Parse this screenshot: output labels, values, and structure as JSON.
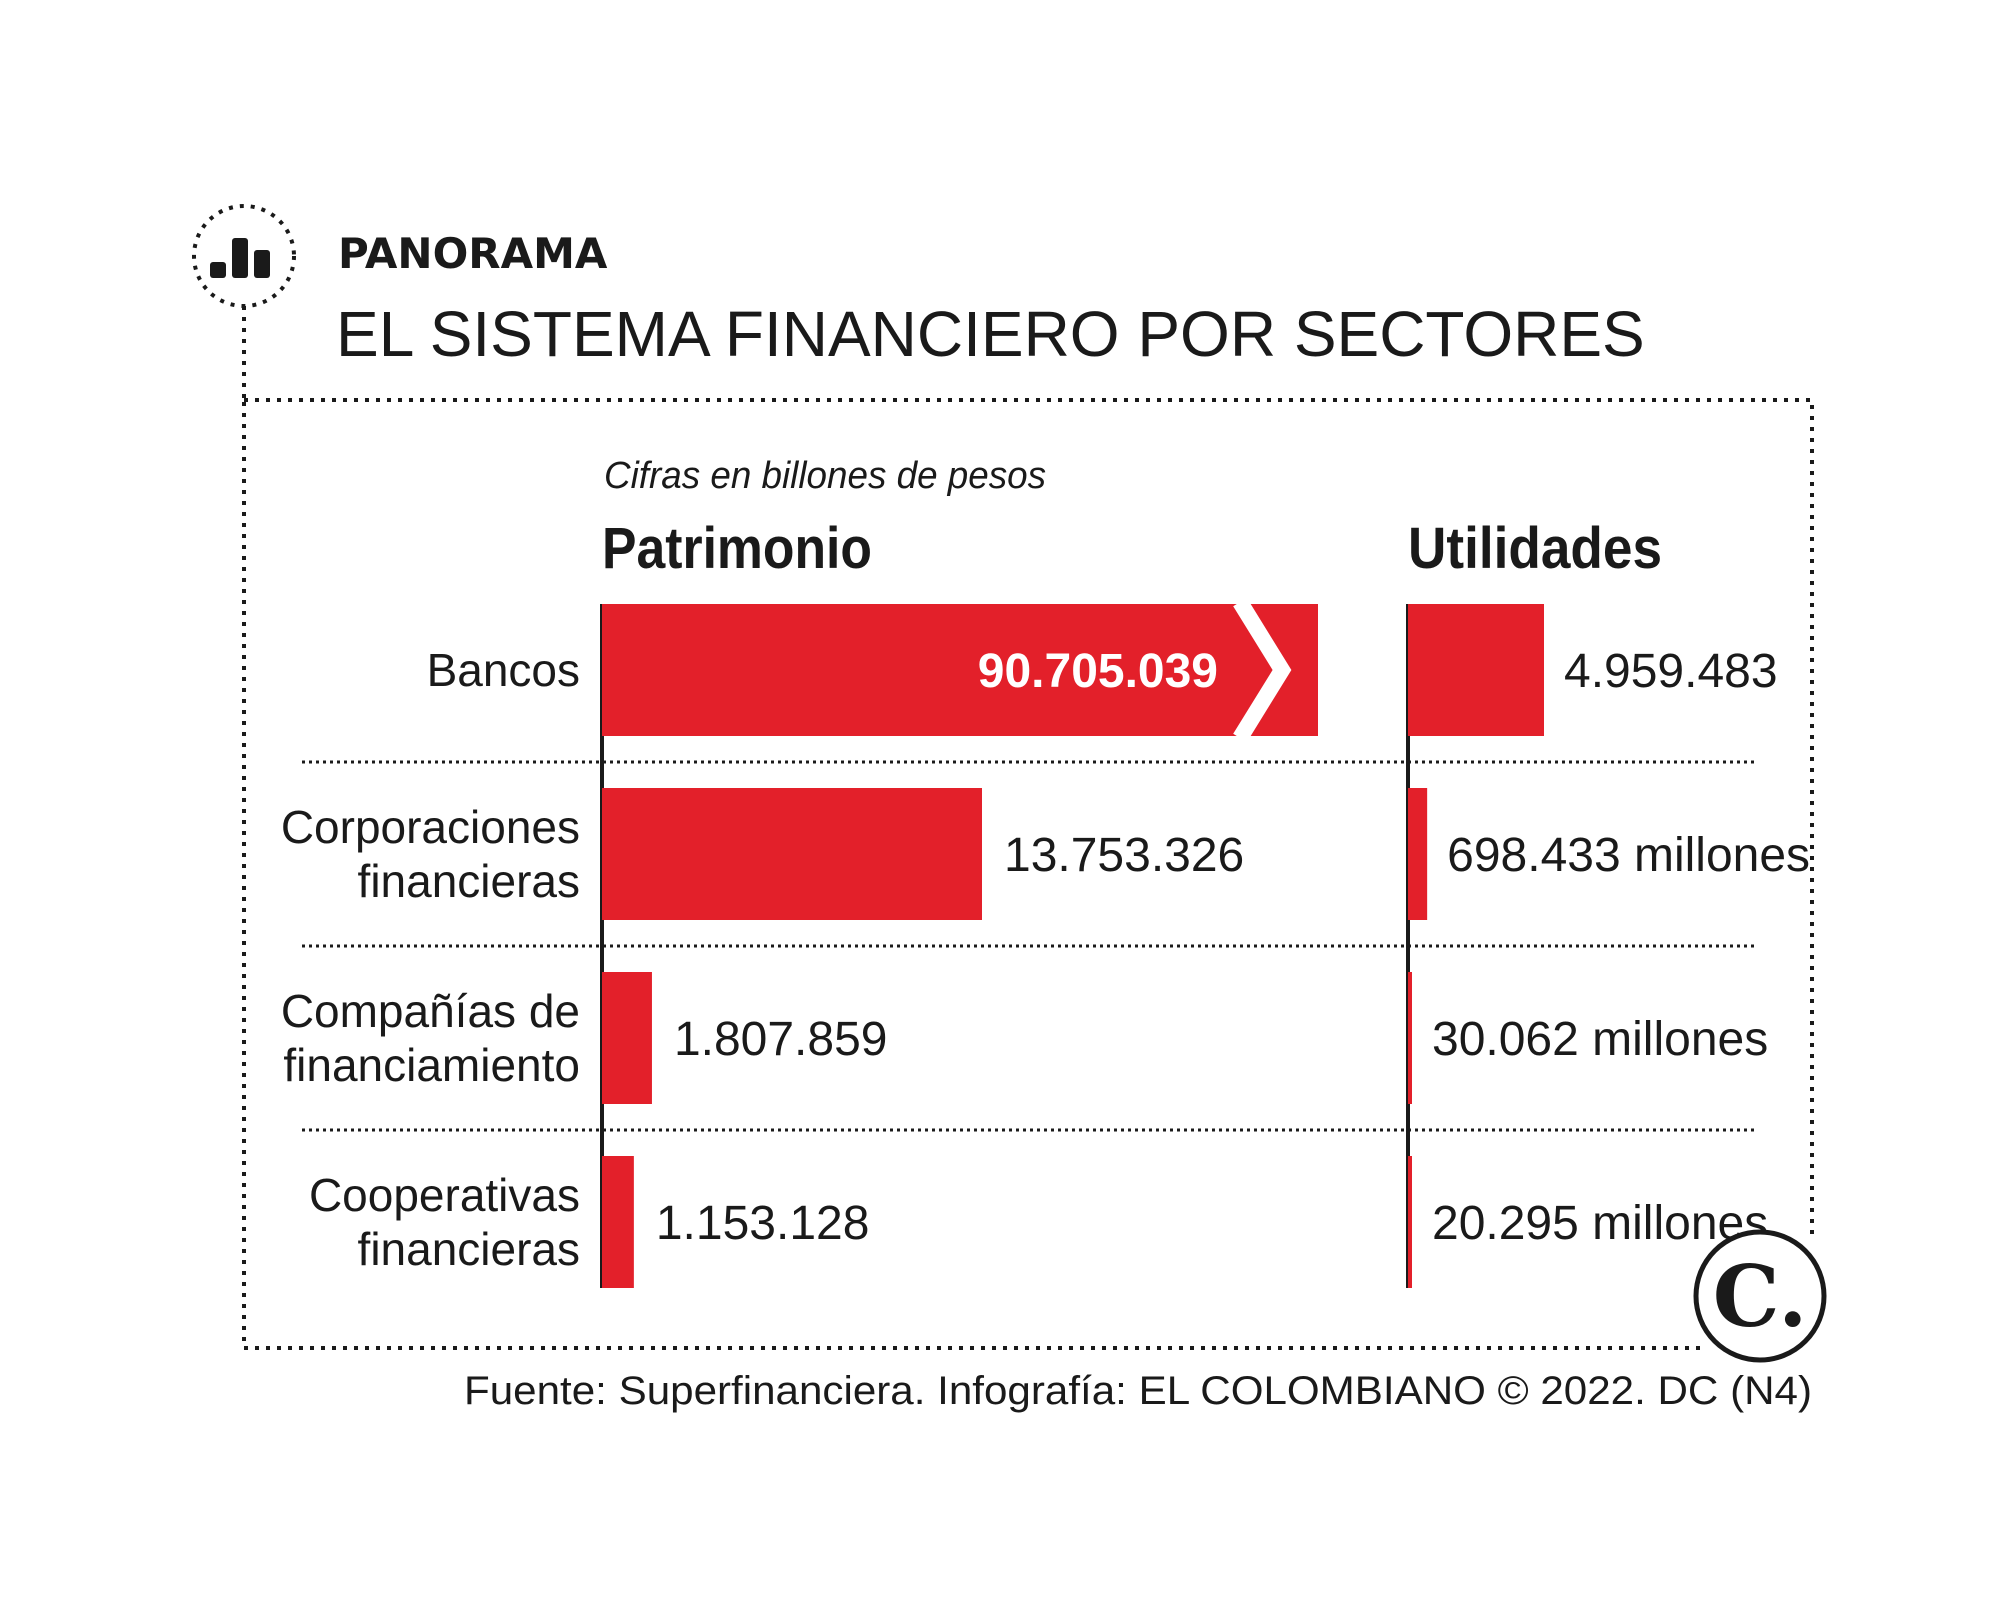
{
  "header": {
    "kicker": "PANORAMA",
    "title": "EL SISTEMA FINANCIERO POR SECTORES",
    "icon": "bar-chart-icon"
  },
  "chart_data": {
    "type": "bar",
    "subtitle": "Cifras en billones de pesos",
    "categories": [
      "Bancos",
      "Corporaciones financieras",
      "Compañías de financiamiento",
      "Cooperativas financieras"
    ],
    "category_lines": [
      [
        "Bancos"
      ],
      [
        "Corporaciones",
        "financieras"
      ],
      [
        "Compañías de",
        "financiamiento"
      ],
      [
        "Cooperativas",
        "financieras"
      ]
    ],
    "series": [
      {
        "name": "Patrimonio",
        "values": [
          90705039,
          13753326,
          1807859,
          1153128
        ],
        "labels": [
          "90.705.039",
          "13.753.326",
          "1.807.859",
          "1.153.128"
        ],
        "axis_break_on": "Bancos"
      },
      {
        "name": "Utilidades",
        "values": [
          4959483,
          698433,
          30062,
          20295
        ],
        "labels": [
          "4.959.483",
          "698.433 millones",
          "30.062 millones",
          "20.295 millones"
        ]
      }
    ],
    "bar_color": "#e3202a",
    "grid": false
  },
  "footer": {
    "source": "Fuente: Superfinanciera. Infografía: EL COLOMBIANO © 2022. DC (N4)",
    "logo": "C."
  }
}
